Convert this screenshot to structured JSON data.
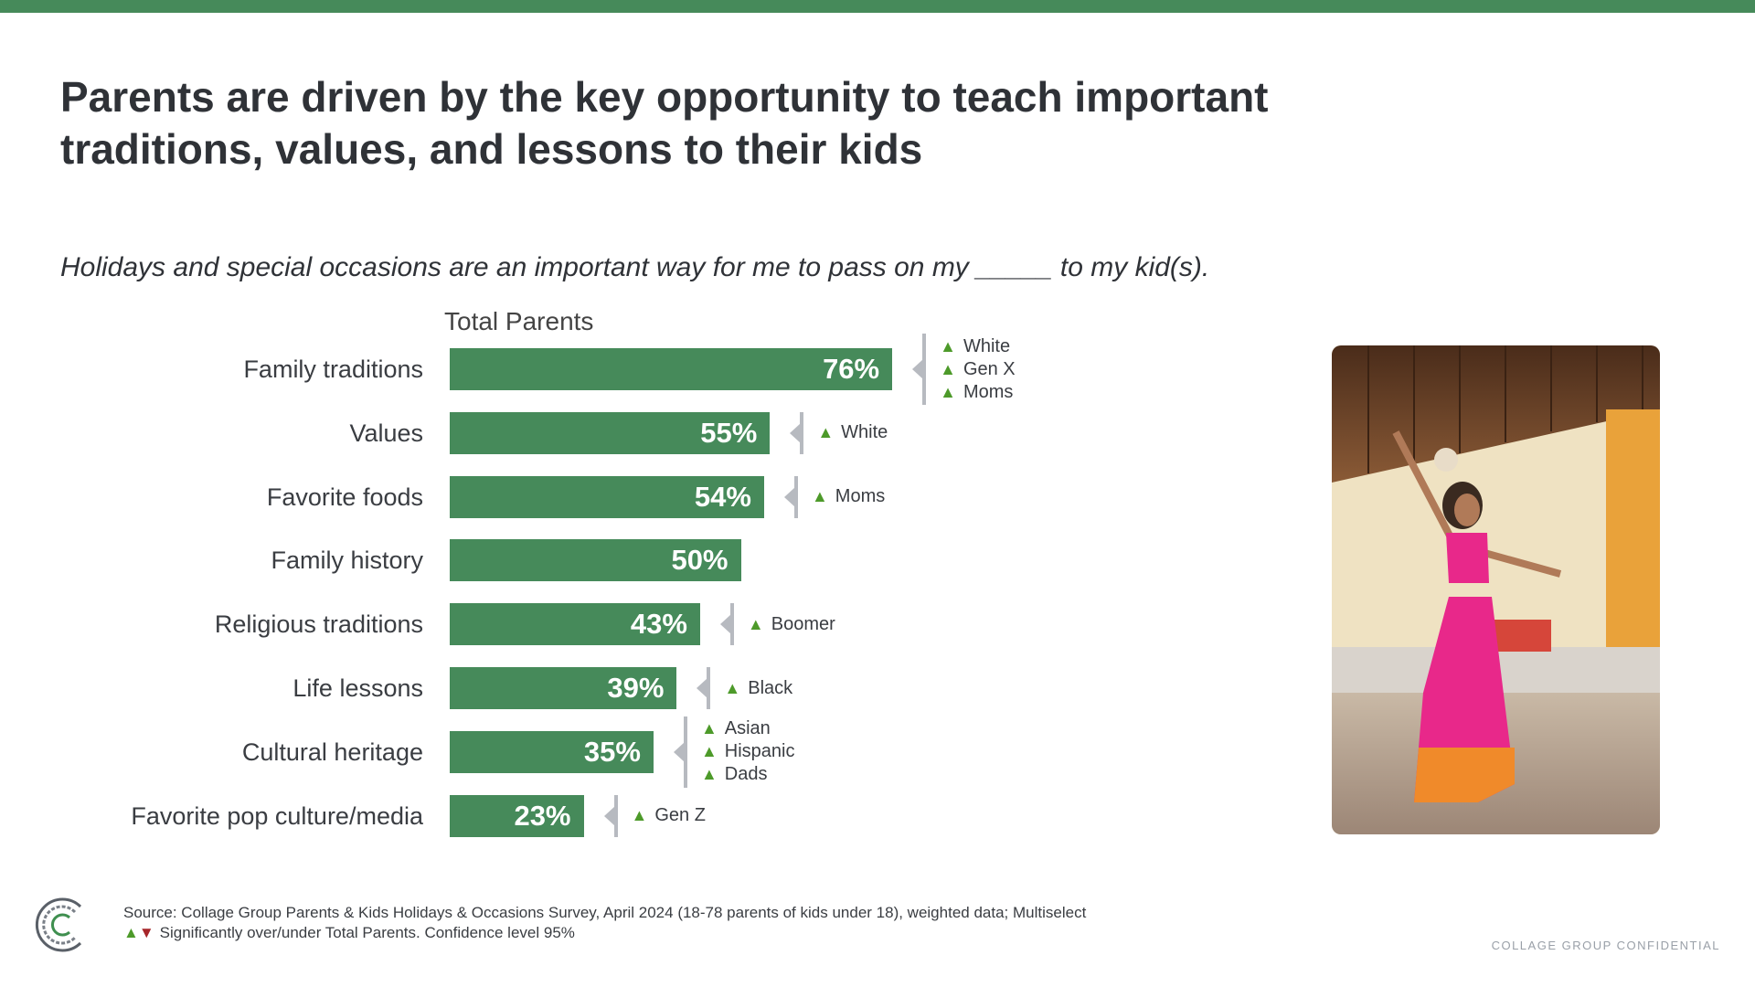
{
  "title": "Parents are driven by the key opportunity to teach important traditions, values, and lessons to their kids",
  "subtitle": "Holidays and special occasions are an important way for me to pass on my _____ to my kid(s).",
  "colors": {
    "bar": "#468a5a",
    "up": "#4d9a2a",
    "down": "#a6262a",
    "bracket": "#b7bac0"
  },
  "chart_data": {
    "type": "bar",
    "orientation": "horizontal",
    "series": [
      {
        "name": "Total Parents",
        "values": [
          76,
          55,
          54,
          50,
          43,
          39,
          35,
          23
        ]
      }
    ],
    "categories": [
      "Family traditions",
      "Values",
      "Favorite foods",
      "Family history",
      "Religious traditions",
      "Life lessons",
      "Cultural heritage",
      "Favorite pop culture/media"
    ],
    "value_labels": [
      "76%",
      "55%",
      "54%",
      "50%",
      "43%",
      "39%",
      "35%",
      "23%"
    ],
    "significance": [
      [
        "White",
        "Gen X",
        "Moms"
      ],
      [
        "White"
      ],
      [
        "Moms"
      ],
      [],
      [
        "Boomer"
      ],
      [
        "Black"
      ],
      [
        "Asian",
        "Hispanic",
        "Dads"
      ],
      [
        "Gen Z"
      ]
    ],
    "group_label": "Total Parents",
    "xlim": [
      0,
      100
    ]
  },
  "footer": {
    "source": "Source: Collage Group Parents & Kids Holidays & Occasions Survey, April 2024 (18-78 parents of kids under 18), weighted data; Multiselect",
    "legend_up": "▲",
    "legend_down": "▼",
    "legend": "Significantly over/under Total Parents. Confidence level 95%",
    "confidential": "COLLAGE GROUP CONFIDENTIAL"
  },
  "icons": {
    "up": "▲",
    "logo": "collage-group-logo"
  }
}
